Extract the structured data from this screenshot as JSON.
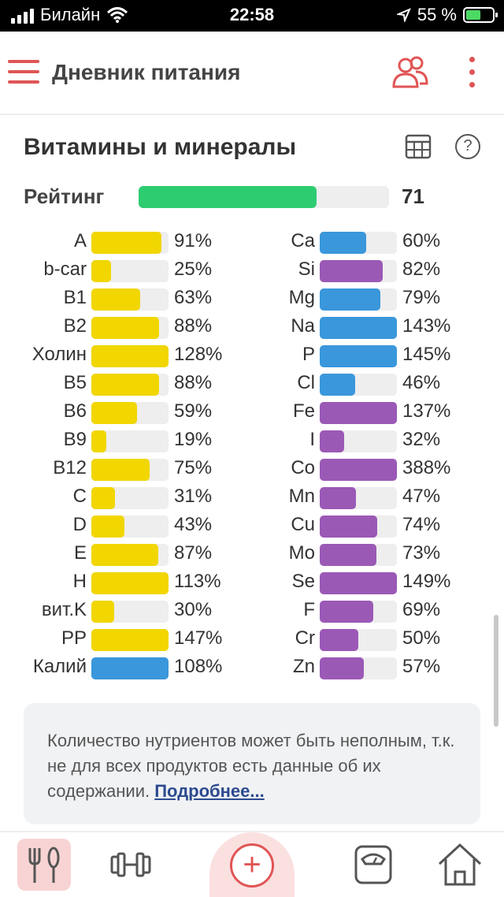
{
  "status_bar": {
    "carrier": "Билайн",
    "time": "22:58",
    "battery": "55 %"
  },
  "header": {
    "title": "Дневник питания"
  },
  "section": {
    "title": "Витамины и минералы"
  },
  "rating": {
    "label": "Рейтинг",
    "value": "71",
    "fill_fraction": 0.71,
    "color": "#2ecc71"
  },
  "colors": {
    "vitamin": "#f1d600",
    "mineral_blue": "#3a97db",
    "mineral_purple": "#9b59b6",
    "accent": "#e05555"
  },
  "left_column": [
    {
      "name": "A",
      "pct": "91%",
      "value": 91,
      "color": "#f1d600"
    },
    {
      "name": "b-car",
      "pct": "25%",
      "value": 25,
      "color": "#f1d600"
    },
    {
      "name": "B1",
      "pct": "63%",
      "value": 63,
      "color": "#f1d600"
    },
    {
      "name": "B2",
      "pct": "88%",
      "value": 88,
      "color": "#f1d600"
    },
    {
      "name": "Холин",
      "pct": "128%",
      "value": 128,
      "color": "#f1d600"
    },
    {
      "name": "B5",
      "pct": "88%",
      "value": 88,
      "color": "#f1d600"
    },
    {
      "name": "B6",
      "pct": "59%",
      "value": 59,
      "color": "#f1d600"
    },
    {
      "name": "B9",
      "pct": "19%",
      "value": 19,
      "color": "#f1d600"
    },
    {
      "name": "B12",
      "pct": "75%",
      "value": 75,
      "color": "#f1d600"
    },
    {
      "name": "C",
      "pct": "31%",
      "value": 31,
      "color": "#f1d600"
    },
    {
      "name": "D",
      "pct": "43%",
      "value": 43,
      "color": "#f1d600"
    },
    {
      "name": "E",
      "pct": "87%",
      "value": 87,
      "color": "#f1d600"
    },
    {
      "name": "H",
      "pct": "113%",
      "value": 113,
      "color": "#f1d600"
    },
    {
      "name": "вит.K",
      "pct": "30%",
      "value": 30,
      "color": "#f1d600"
    },
    {
      "name": "PP",
      "pct": "147%",
      "value": 147,
      "color": "#f1d600"
    },
    {
      "name": "Калий",
      "pct": "108%",
      "value": 108,
      "color": "#3a97db"
    }
  ],
  "right_column": [
    {
      "name": "Ca",
      "pct": "60%",
      "value": 60,
      "color": "#3a97db"
    },
    {
      "name": "Si",
      "pct": "82%",
      "value": 82,
      "color": "#9b59b6"
    },
    {
      "name": "Mg",
      "pct": "79%",
      "value": 79,
      "color": "#3a97db"
    },
    {
      "name": "Na",
      "pct": "143%",
      "value": 143,
      "color": "#3a97db"
    },
    {
      "name": "P",
      "pct": "145%",
      "value": 145,
      "color": "#3a97db"
    },
    {
      "name": "Cl",
      "pct": "46%",
      "value": 46,
      "color": "#3a97db"
    },
    {
      "name": "Fe",
      "pct": "137%",
      "value": 137,
      "color": "#9b59b6"
    },
    {
      "name": "I",
      "pct": "32%",
      "value": 32,
      "color": "#9b59b6"
    },
    {
      "name": "Co",
      "pct": "388%",
      "value": 388,
      "color": "#9b59b6"
    },
    {
      "name": "Mn",
      "pct": "47%",
      "value": 47,
      "color": "#9b59b6"
    },
    {
      "name": "Cu",
      "pct": "74%",
      "value": 74,
      "color": "#9b59b6"
    },
    {
      "name": "Mo",
      "pct": "73%",
      "value": 73,
      "color": "#9b59b6"
    },
    {
      "name": "Se",
      "pct": "149%",
      "value": 149,
      "color": "#9b59b6"
    },
    {
      "name": "F",
      "pct": "69%",
      "value": 69,
      "color": "#9b59b6"
    },
    {
      "name": "Cr",
      "pct": "50%",
      "value": 50,
      "color": "#9b59b6"
    },
    {
      "name": "Zn",
      "pct": "57%",
      "value": 57,
      "color": "#9b59b6"
    }
  ],
  "info": {
    "text": "Количество нутриентов может быть неполным, т.к. не для всех продуктов есть данные об их содержании.",
    "link": "Подробнее..."
  },
  "bottom_nav": {
    "items": [
      {
        "icon": "fork-spoon-icon",
        "active": true
      },
      {
        "icon": "dumbbell-icon",
        "active": false
      },
      {
        "icon": "plus-circle-icon",
        "active": false
      },
      {
        "icon": "scale-icon",
        "active": false
      },
      {
        "icon": "home-icon",
        "active": false
      }
    ]
  }
}
